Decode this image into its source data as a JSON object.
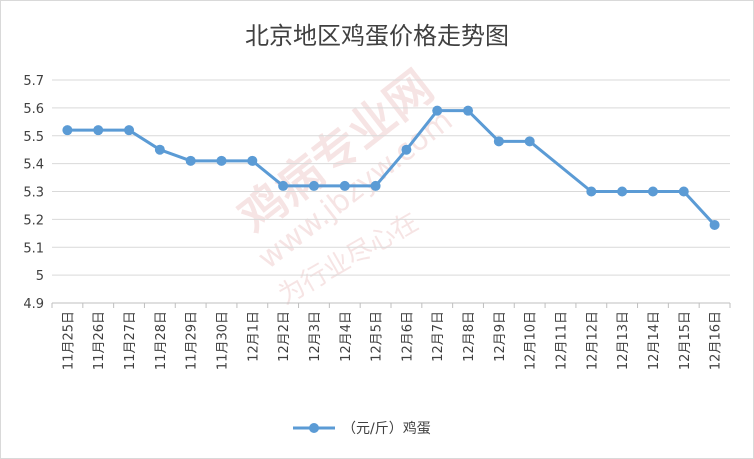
{
  "chart_data": {
    "type": "line",
    "title": "北京地区鸡蛋价格走势图",
    "categories": [
      "11月25日",
      "11月26日",
      "11月27日",
      "11月28日",
      "11月29日",
      "11月30日",
      "12月1日",
      "12月2日",
      "12月3日",
      "12月4日",
      "12月5日",
      "12月6日",
      "12月7日",
      "12月8日",
      "12月9日",
      "12月10日",
      "12月11日",
      "12月12日",
      "12月13日",
      "12月14日",
      "12月15日",
      "12月16日"
    ],
    "series": [
      {
        "name": "（元/斤）鸡蛋",
        "values": [
          5.52,
          5.52,
          5.52,
          5.45,
          5.41,
          5.41,
          5.41,
          5.32,
          5.32,
          5.32,
          5.32,
          5.45,
          5.59,
          5.59,
          5.48,
          5.48,
          null,
          5.3,
          5.3,
          5.3,
          5.3,
          5.18
        ],
        "color": "#5b9bd5"
      }
    ],
    "ylim": [
      4.9,
      5.7
    ],
    "yticks": [
      "4.9",
      "5",
      "5.1",
      "5.2",
      "5.3",
      "5.4",
      "5.5",
      "5.6",
      "5.7"
    ],
    "grid": true,
    "legend": "bottom",
    "xlabel": "",
    "ylabel": ""
  },
  "watermark": {
    "text_main": "鸡病专业网",
    "text_url": "www.jbzyw.com",
    "text_slogan": "为行业尽心在"
  }
}
